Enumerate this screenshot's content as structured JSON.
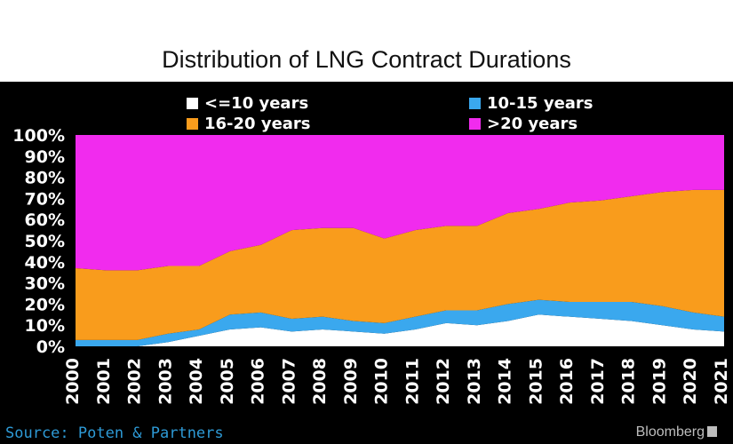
{
  "chart_data": {
    "type": "area",
    "stacked": true,
    "title": "Distribution of LNG Contract Durations",
    "x": [
      "2000",
      "2001",
      "2002",
      "2003",
      "2004",
      "2005",
      "2006",
      "2007",
      "2008",
      "2009",
      "2010",
      "2011",
      "2012",
      "2013",
      "2014",
      "2015",
      "2016",
      "2017",
      "2018",
      "2019",
      "2020",
      "2021"
    ],
    "ylim": [
      0,
      100
    ],
    "yticks": [
      "0%",
      "10%",
      "20%",
      "30%",
      "40%",
      "50%",
      "60%",
      "70%",
      "80%",
      "90%",
      "100%"
    ],
    "xlabel": "",
    "ylabel": "",
    "legend_position": "top",
    "series": [
      {
        "name": "<=10 years",
        "color": "#ffffff",
        "values": [
          0,
          0,
          0,
          2,
          5,
          8,
          9,
          7,
          8,
          7,
          6,
          8,
          11,
          10,
          12,
          15,
          14,
          13,
          12,
          10,
          8,
          7
        ]
      },
      {
        "name": "10-15 years",
        "color": "#3aa8ee",
        "values": [
          3,
          3,
          3,
          4,
          3,
          7,
          7,
          6,
          6,
          5,
          5,
          6,
          6,
          7,
          8,
          7,
          7,
          8,
          9,
          9,
          8,
          7
        ]
      },
      {
        "name": "16-20 years",
        "color": "#f99c1c",
        "values": [
          34,
          33,
          33,
          32,
          30,
          30,
          32,
          42,
          42,
          44,
          40,
          41,
          40,
          40,
          43,
          43,
          47,
          48,
          50,
          54,
          58,
          60
        ]
      },
      {
        "name": ">20 years",
        "color": "#f12bee",
        "values": [
          63,
          64,
          64,
          62,
          62,
          55,
          52,
          45,
          44,
          44,
          49,
          45,
          43,
          43,
          37,
          35,
          32,
          31,
          29,
          27,
          26,
          26
        ]
      }
    ]
  },
  "source_label": "Source: Poten & Partners",
  "source_color": "#2e9ad6",
  "brand_label": "Bloomberg"
}
